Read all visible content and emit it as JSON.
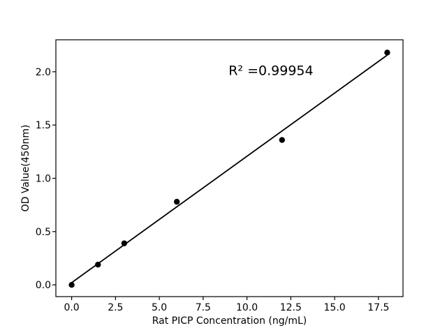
{
  "chart_data": {
    "type": "scatter",
    "xlabel": "Rat PICP Concentration (ng/mL)",
    "ylabel": "OD Value(450nm)",
    "annotation": "R² =0.99954",
    "annotation_xy": [
      8.95,
      1.97
    ],
    "x": [
      0,
      1.5,
      3,
      6,
      12,
      18
    ],
    "y": [
      0.0,
      0.19,
      0.39,
      0.78,
      1.36,
      2.18
    ],
    "fit_line": {
      "slope": 0.1186,
      "intercept": 0.021,
      "x_start": 0,
      "x_end": 18
    },
    "xticks": [
      "0.0",
      "2.5",
      "5.0",
      "7.5",
      "10.0",
      "12.5",
      "15.0",
      "17.5"
    ],
    "xtick_values": [
      0,
      2.5,
      5,
      7.5,
      10,
      12.5,
      15,
      17.5
    ],
    "yticks": [
      "0.0",
      "0.5",
      "1.0",
      "1.5",
      "2.0"
    ],
    "ytick_values": [
      0,
      0.5,
      1,
      1.5,
      2
    ],
    "xlim": [
      -0.9,
      18.9
    ],
    "ylim": [
      -0.11,
      2.3
    ],
    "grid": false,
    "legend_position": "none",
    "marker_color": "#000000",
    "line_color": "#000000",
    "axis_color": "#000000",
    "background_color": "#ffffff"
  }
}
